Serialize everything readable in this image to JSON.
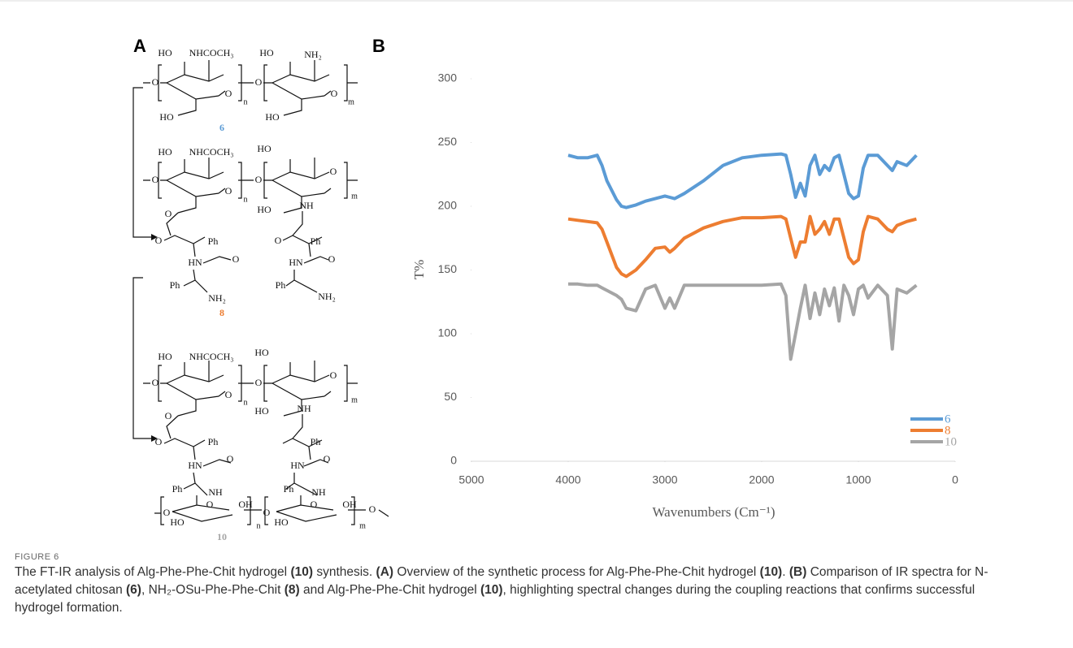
{
  "panels": {
    "a": "A",
    "b": "B"
  },
  "scheme": {
    "s6": {
      "labels": [
        "HO",
        "NHCOCH₃",
        "HO",
        "NH₂",
        "O",
        "O",
        "O",
        "O",
        "n",
        "m",
        "HO",
        "HO"
      ],
      "number": "6"
    },
    "s8": {
      "labels": [
        "HO",
        "NHCOCH₃",
        "HO",
        "O",
        "O",
        "O",
        "O",
        "n",
        "m",
        "HO",
        "NH",
        "O",
        "O",
        "Ph",
        "Ph",
        "HN",
        "O",
        "HN",
        "O",
        "Ph",
        "NH₂",
        "Ph",
        "NH₂"
      ],
      "number": "8"
    },
    "s10": {
      "labels": [
        "HO",
        "NHCOCH₃",
        "HO",
        "O",
        "O",
        "O",
        "O",
        "n",
        "m",
        "HO",
        "NH",
        "O",
        "O",
        "Ph",
        "Ph",
        "HN",
        "O",
        "HN",
        "O",
        "Ph",
        "NH",
        "Ph",
        "NH",
        "O",
        "OH",
        "O",
        "OH",
        "O",
        "O",
        "n",
        "m",
        "HO",
        "HO",
        "O"
      ],
      "number": "10"
    }
  },
  "chart_data": {
    "type": "line",
    "x_label": "Wavenumbers (Cm⁻¹)",
    "y_label": "T%",
    "x": [
      4000,
      3900,
      3800,
      3700,
      3650,
      3600,
      3500,
      3450,
      3400,
      3300,
      3200,
      3100,
      3000,
      2950,
      2900,
      2800,
      2600,
      2400,
      2200,
      2000,
      1800,
      1750,
      1700,
      1650,
      1600,
      1550,
      1500,
      1450,
      1400,
      1350,
      1300,
      1250,
      1200,
      1150,
      1100,
      1050,
      1000,
      950,
      900,
      800,
      700,
      650,
      600,
      500,
      400
    ],
    "series": [
      {
        "name": "6",
        "color": "#5b9bd5",
        "values": [
          240,
          238,
          238,
          240,
          232,
          220,
          205,
          200,
          199,
          201,
          204,
          206,
          208,
          207,
          206,
          210,
          220,
          232,
          238,
          240,
          241,
          240,
          225,
          207,
          218,
          208,
          232,
          240,
          225,
          232,
          228,
          238,
          240,
          225,
          210,
          206,
          208,
          230,
          240,
          240,
          232,
          228,
          235,
          232,
          240
        ]
      },
      {
        "name": "8",
        "color": "#ed7d31",
        "values": [
          190,
          189,
          188,
          187,
          182,
          172,
          152,
          147,
          145,
          150,
          158,
          167,
          168,
          164,
          167,
          175,
          183,
          188,
          191,
          191,
          192,
          190,
          175,
          160,
          172,
          172,
          192,
          178,
          182,
          188,
          178,
          190,
          190,
          175,
          160,
          155,
          158,
          180,
          192,
          190,
          182,
          180,
          185,
          188,
          190
        ]
      },
      {
        "name": "10",
        "color": "#a5a5a5",
        "values": [
          139,
          139,
          138,
          138,
          136,
          134,
          130,
          127,
          120,
          118,
          135,
          138,
          120,
          128,
          120,
          138,
          138,
          138,
          138,
          138,
          139,
          130,
          80,
          100,
          120,
          138,
          112,
          132,
          115,
          135,
          122,
          136,
          110,
          138,
          130,
          115,
          135,
          138,
          128,
          138,
          130,
          88,
          135,
          132,
          138
        ]
      }
    ],
    "xlim": [
      5000,
      0
    ],
    "xticks": [
      5000,
      4000,
      3000,
      2000,
      1000,
      0
    ],
    "ylim": [
      0,
      300
    ],
    "yticks": [
      0,
      50,
      100,
      150,
      200,
      250,
      300
    ],
    "grid": false,
    "legend": "lower right"
  },
  "caption": {
    "label": "FIGURE 6",
    "runs": [
      {
        "text": "The FT-IR analysis of Alg-Phe-Phe-Chit hydrogel "
      },
      {
        "text": "(10)",
        "bold": true
      },
      {
        "text": " synthesis. "
      },
      {
        "text": "(A)",
        "bold": true
      },
      {
        "text": " Overview of the synthetic process for Alg-Phe-Phe-Chit hydrogel "
      },
      {
        "text": "(10)",
        "bold": true
      },
      {
        "text": ". "
      },
      {
        "text": "(B)",
        "bold": true
      },
      {
        "text": " Comparison of IR spectra for N-acetylated chitosan "
      },
      {
        "text": "(6)",
        "bold": true
      },
      {
        "text": ", NH₂-OSu-Phe-Phe-Chit "
      },
      {
        "text": "(8)",
        "bold": true
      },
      {
        "text": " and Alg-Phe-Phe-Chit hydrogel "
      },
      {
        "text": "(10)",
        "bold": true
      },
      {
        "text": ", highlighting spectral changes during the coupling reactions that confirms successful hydrogel formation."
      }
    ]
  }
}
